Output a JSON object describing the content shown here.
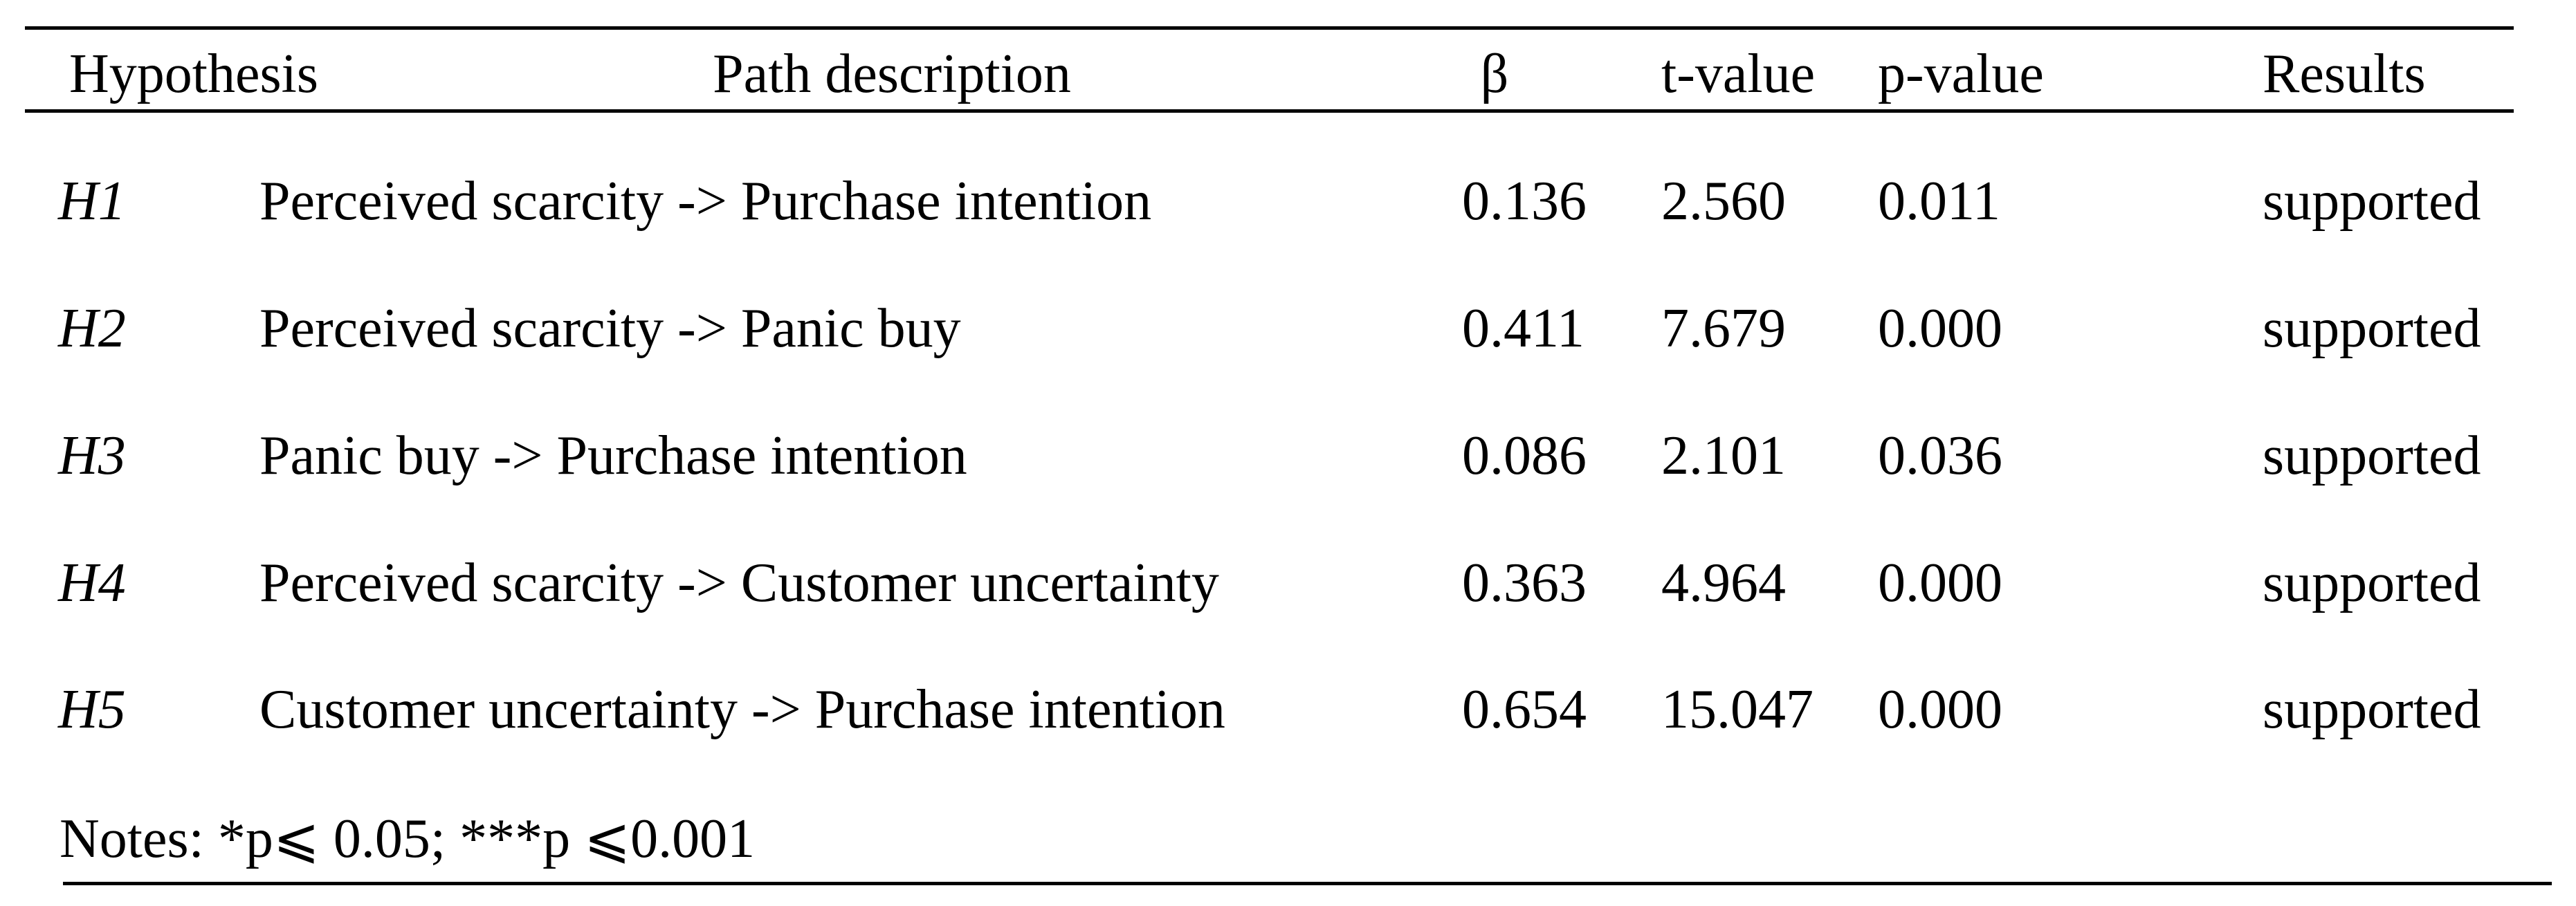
{
  "table": {
    "headers": [
      "Hypothesis",
      "Path description",
      "β",
      "t-value",
      "p-value",
      "Results"
    ],
    "rows": [
      [
        "H1",
        "Perceived scarcity -> Purchase intention",
        "0.136",
        "2.560",
        "0.011",
        "supported"
      ],
      [
        "H2",
        "Perceived scarcity -> Panic buy",
        "0.411",
        "7.679",
        "0.000",
        "supported"
      ],
      [
        "H3",
        "Panic buy -> Purchase intention",
        "0.086",
        "2.101",
        "0.036",
        "supported"
      ],
      [
        "H4",
        "Perceived scarcity -> Customer uncertainty",
        "0.363",
        "4.964",
        "0.000",
        "supported"
      ],
      [
        "H5",
        "Customer uncertainty -> Purchase intention",
        "0.654",
        "15.047",
        "0.000",
        "supported"
      ]
    ],
    "notes": "Notes: *p⩽ 0.05; ***p ⩽0.001"
  }
}
